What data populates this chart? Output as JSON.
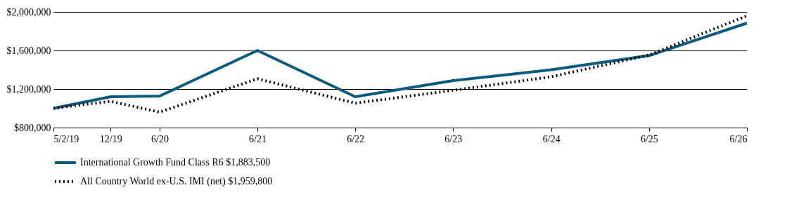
{
  "chart_data": {
    "type": "line",
    "x": [
      "2019-05-02",
      "2019-12",
      "2020-06",
      "2021-06",
      "2022-06",
      "2023-06",
      "2024-06",
      "2025-06",
      "2026-06"
    ],
    "series": [
      {
        "name": "International Growth Fund Class R6 $1,883,500",
        "color": "#0b5a80",
        "line_style": "solid",
        "values": [
          1000000,
          1120000,
          1127000,
          1600000,
          1120000,
          1287000,
          1400000,
          1547000,
          1883500
        ]
      },
      {
        "name": "All Country World ex-U.S. IMI (net) $1,959,800",
        "color": "#000000",
        "line_style": "dotted",
        "values": [
          1000000,
          1073000,
          960000,
          1307000,
          1053000,
          1187000,
          1327000,
          1553000,
          1959800
        ]
      }
    ],
    "xlim": [
      "2019-05-02",
      "2026-06"
    ],
    "xticks": [
      {
        "value": "2019-05-02",
        "label": "5/2/19"
      },
      {
        "value": "2019-12",
        "label": "12/19"
      },
      {
        "value": "2020-06",
        "label": "6/20"
      },
      {
        "value": "2021-06",
        "label": "6/21"
      },
      {
        "value": "2022-06",
        "label": "6/22"
      },
      {
        "value": "2023-06",
        "label": "6/23"
      },
      {
        "value": "2024-06",
        "label": "6/24"
      },
      {
        "value": "2025-06",
        "label": "6/25"
      },
      {
        "value": "2026-06",
        "label": "6/26"
      }
    ],
    "ylim": [
      800000,
      2000000
    ],
    "yticks": [
      {
        "value": 800000,
        "label": "$800,000"
      },
      {
        "value": 1200000,
        "label": "$1,200,000"
      },
      {
        "value": 1600000,
        "label": "$1,600,000"
      },
      {
        "value": 2000000,
        "label": "$2,000,000"
      }
    ],
    "grid": "y",
    "legend": "bottom",
    "marker": "none"
  }
}
